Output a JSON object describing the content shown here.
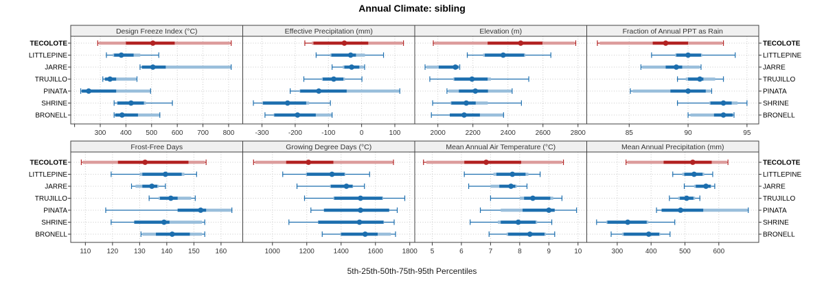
{
  "title": "Annual Climate: sibling",
  "caption": "5th-25th-50th-75th-95th Percentiles",
  "sites": [
    "TECOLOTE",
    "LITTLEPINE",
    "JARRE",
    "TRUJILLO",
    "PINATA",
    "SHRINE",
    "BRONELL"
  ],
  "highlight_site": "TECOLOTE",
  "colors": {
    "highlight": "#B22222",
    "normal": "#1C6EAE",
    "grid": "#C8C8C8",
    "border": "#3F3F3F",
    "strip_bg": "#F0F0F0",
    "strip_text": "#333333",
    "tick_text": "#333333",
    "label_text": "#000000"
  },
  "chart_data": [
    {
      "type": "percentile-dotplot",
      "title": "Design Freeze Index (°C)",
      "row": 0,
      "col": 0,
      "xlim": [
        185,
        855
      ],
      "ticks": [
        300,
        400,
        500,
        600,
        700,
        800
      ],
      "unlabeled_ticks": [
        200
      ],
      "series": [
        {
          "site": "TECOLOTE",
          "p5_25_50_75_95": [
            290,
            400,
            505,
            590,
            810
          ],
          "band": [
            295,
            805
          ]
        },
        {
          "site": "LITTLEPINE",
          "p5_25_50_75_95": [
            324,
            354,
            382,
            430,
            528
          ],
          "band": [
            349,
            456
          ]
        },
        {
          "site": "JARRE",
          "p5_25_50_75_95": [
            455,
            462,
            505,
            555,
            810
          ],
          "band": [
            462,
            808
          ]
        },
        {
          "site": "TRUJILLO",
          "p5_25_50_75_95": [
            310,
            318,
            338,
            362,
            443
          ],
          "band": [
            320,
            440
          ]
        },
        {
          "site": "PINATA",
          "p5_25_50_75_95": [
            224,
            228,
            255,
            362,
            496
          ],
          "band": [
            230,
            494
          ]
        },
        {
          "site": "SHRINE",
          "p5_25_50_75_95": [
            354,
            367,
            420,
            470,
            581
          ],
          "band": [
            365,
            478
          ]
        },
        {
          "site": "BRONELL",
          "p5_25_50_75_95": [
            354,
            358,
            385,
            447,
            532
          ],
          "band": [
            360,
            530
          ]
        }
      ]
    },
    {
      "type": "percentile-dotplot",
      "title": "Effective Precipitation (mm)",
      "row": 0,
      "col": 1,
      "xlim": [
        -358,
        160
      ],
      "ticks": [
        -300,
        -200,
        -100,
        0,
        100
      ],
      "unlabeled_ticks": [],
      "series": [
        {
          "site": "TECOLOTE",
          "p5_25_50_75_95": [
            -171,
            -145,
            -52,
            20,
            126
          ],
          "band": [
            -150,
            123
          ]
        },
        {
          "site": "LITTLEPINE",
          "p5_25_50_75_95": [
            -137,
            -91,
            -33,
            -17,
            66
          ],
          "band": [
            -95,
            10
          ]
        },
        {
          "site": "JARRE",
          "p5_25_50_75_95": [
            -89,
            -52,
            -30,
            -7,
            9
          ],
          "band": [
            -57,
            6
          ]
        },
        {
          "site": "TRUJILLO",
          "p5_25_50_75_95": [
            -174,
            -117,
            -84,
            -55,
            1
          ],
          "band": [
            -120,
            -50
          ]
        },
        {
          "site": "PINATA",
          "p5_25_50_75_95": [
            -215,
            -185,
            -129,
            -45,
            115
          ],
          "band": [
            -187,
            113
          ]
        },
        {
          "site": "SHRINE",
          "p5_25_50_75_95": [
            -326,
            -297,
            -223,
            -167,
            -94
          ],
          "band": [
            -299,
            -158
          ]
        },
        {
          "site": "BRONELL",
          "p5_25_50_75_95": [
            -291,
            -263,
            -193,
            -138,
            -89
          ],
          "band": [
            -265,
            -90
          ]
        }
      ]
    },
    {
      "type": "percentile-dotplot",
      "title": "Elevation (m)",
      "row": 0,
      "col": 2,
      "xlim": [
        1868,
        2850
      ],
      "ticks": [
        2000,
        2200,
        2400,
        2600,
        2800
      ],
      "unlabeled_ticks": [],
      "series": [
        {
          "site": "TECOLOTE",
          "p5_25_50_75_95": [
            1974,
            2284,
            2473,
            2597,
            2787
          ],
          "band": [
            1980,
            2780
          ]
        },
        {
          "site": "LITTLEPINE",
          "p5_25_50_75_95": [
            2168,
            2268,
            2373,
            2493,
            2645
          ],
          "band": [
            2258,
            2500
          ]
        },
        {
          "site": "JARRE",
          "p5_25_50_75_95": [
            1927,
            2005,
            2100,
            2118,
            2125
          ],
          "band": [
            1935,
            2120
          ]
        },
        {
          "site": "TRUJILLO",
          "p5_25_50_75_95": [
            1954,
            2094,
            2195,
            2284,
            2519
          ],
          "band": [
            2088,
            2303
          ]
        },
        {
          "site": "PINATA",
          "p5_25_50_75_95": [
            2052,
            2120,
            2214,
            2286,
            2424
          ],
          "band": [
            2060,
            2420
          ]
        },
        {
          "site": "SHRINE",
          "p5_25_50_75_95": [
            1970,
            2077,
            2162,
            2216,
            2477
          ],
          "band": [
            2072,
            2285
          ]
        },
        {
          "site": "BRONELL",
          "p5_25_50_75_95": [
            1963,
            2068,
            2150,
            2240,
            2375
          ],
          "band": [
            2070,
            2373
          ]
        }
      ]
    },
    {
      "type": "percentile-dotplot",
      "title": "Fraction of Annual PPT as Rain",
      "row": 0,
      "col": 3,
      "xlim": [
        81.4,
        96
      ],
      "ticks": [
        85,
        90,
        95
      ],
      "unlabeled_ticks": [],
      "series": [
        {
          "site": "TECOLOTE",
          "p5_25_50_75_95": [
            82.3,
            87.0,
            88.1,
            90.0,
            93.0
          ],
          "band": [
            82.5,
            92.9
          ]
        },
        {
          "site": "LITTLEPINE",
          "p5_25_50_75_95": [
            86.9,
            89.0,
            90.0,
            91.1,
            94.0
          ],
          "band": [
            88.9,
            91.2
          ]
        },
        {
          "site": "JARRE",
          "p5_25_50_75_95": [
            86.0,
            88.1,
            89.0,
            89.5,
            91.1
          ],
          "band": [
            86.1,
            91.0
          ]
        },
        {
          "site": "TRUJILLO",
          "p5_25_50_75_95": [
            89.1,
            90.0,
            91.0,
            91.3,
            93.0
          ],
          "band": [
            89.8,
            92.3
          ]
        },
        {
          "site": "PINATA",
          "p5_25_50_75_95": [
            85.1,
            88.5,
            90.0,
            91.5,
            92.0
          ],
          "band": [
            85.3,
            91.9
          ]
        },
        {
          "site": "SHRINE",
          "p5_25_50_75_95": [
            89.1,
            91.9,
            93.0,
            93.7,
            95.0
          ],
          "band": [
            91.8,
            94.2
          ]
        },
        {
          "site": "BRONELL",
          "p5_25_50_75_95": [
            90.0,
            92.2,
            93.0,
            93.8,
            93.9
          ],
          "band": [
            90.2,
            93.8
          ]
        }
      ]
    },
    {
      "type": "percentile-dotplot",
      "title": "Frost-Free Days",
      "row": 1,
      "col": 0,
      "xlim": [
        104.6,
        168
      ],
      "ticks": [
        110,
        120,
        130,
        140,
        150,
        160
      ],
      "unlabeled_ticks": [],
      "series": [
        {
          "site": "TECOLOTE",
          "p5_25_50_75_95": [
            108.5,
            122,
            132,
            148,
            154.5
          ],
          "band": [
            109,
            154
          ]
        },
        {
          "site": "LITTLEPINE",
          "p5_25_50_75_95": [
            119.5,
            131,
            139.5,
            145.5,
            151
          ],
          "band": [
            130,
            146.5
          ]
        },
        {
          "site": "JARRE",
          "p5_25_50_75_95": [
            127,
            131,
            134.5,
            136.5,
            139.5
          ],
          "band": [
            128.5,
            137
          ]
        },
        {
          "site": "TRUJILLO",
          "p5_25_50_75_95": [
            133.5,
            137.5,
            141.5,
            144,
            150.5
          ],
          "band": [
            137,
            149
          ]
        },
        {
          "site": "PINATA",
          "p5_25_50_75_95": [
            117.5,
            144,
            152.5,
            154.5,
            164
          ],
          "band": [
            144,
            163.8
          ]
        },
        {
          "site": "SHRINE",
          "p5_25_50_75_95": [
            119.5,
            128,
            139,
            141,
            154
          ],
          "band": [
            128,
            153
          ]
        },
        {
          "site": "BRONELL",
          "p5_25_50_75_95": [
            130.5,
            136,
            142,
            148.5,
            154
          ],
          "band": [
            131,
            153
          ]
        }
      ]
    },
    {
      "type": "percentile-dotplot",
      "title": "Growing Degree Days (°C)",
      "row": 1,
      "col": 1,
      "xlim": [
        827,
        1829
      ],
      "ticks": [
        1000,
        1200,
        1400,
        1600,
        1800
      ],
      "unlabeled_ticks": [],
      "series": [
        {
          "site": "TECOLOTE",
          "p5_25_50_75_95": [
            890,
            1080,
            1210,
            1355,
            1705
          ],
          "band": [
            900,
            1700
          ]
        },
        {
          "site": "LITTLEPINE",
          "p5_25_50_75_95": [
            1060,
            1200,
            1347,
            1420,
            1566
          ],
          "band": [
            1195,
            1425
          ]
        },
        {
          "site": "JARRE",
          "p5_25_50_75_95": [
            1143,
            1340,
            1431,
            1467,
            1536
          ],
          "band": [
            1335,
            1470
          ]
        },
        {
          "site": "TRUJILLO",
          "p5_25_50_75_95": [
            1187,
            1360,
            1513,
            1640,
            1771
          ],
          "band": [
            1355,
            1645
          ]
        },
        {
          "site": "PINATA",
          "p5_25_50_75_95": [
            1224,
            1300,
            1513,
            1680,
            1727
          ],
          "band": [
            1300,
            1680
          ]
        },
        {
          "site": "SHRINE",
          "p5_25_50_75_95": [
            1096,
            1267,
            1507,
            1647,
            1709
          ],
          "band": [
            1265,
            1650
          ]
        },
        {
          "site": "BRONELL",
          "p5_25_50_75_95": [
            1290,
            1400,
            1540,
            1613,
            1717
          ],
          "band": [
            1395,
            1690
          ]
        }
      ]
    },
    {
      "type": "percentile-dotplot",
      "title": "Mean Annual Air Temperature (°C)",
      "row": 1,
      "col": 2,
      "xlim": [
        4.4,
        10.3
      ],
      "ticks": [
        5,
        6,
        7,
        8,
        9,
        10
      ],
      "unlabeled_ticks": [],
      "series": [
        {
          "site": "TECOLOTE",
          "p5_25_50_75_95": [
            4.7,
            6.1,
            6.85,
            8.05,
            9.5
          ],
          "band": [
            4.8,
            9.45
          ]
        },
        {
          "site": "LITTLEPINE",
          "p5_25_50_75_95": [
            6.1,
            7.2,
            7.75,
            8.2,
            8.7
          ],
          "band": [
            7.1,
            8.3
          ]
        },
        {
          "site": "JARRE",
          "p5_25_50_75_95": [
            6.25,
            7.3,
            7.7,
            7.85,
            8.25
          ],
          "band": [
            7.0,
            7.9
          ]
        },
        {
          "site": "TRUJILLO",
          "p5_25_50_75_95": [
            7.0,
            8.15,
            8.45,
            9.05,
            9.45
          ],
          "band": [
            8.0,
            9.15
          ]
        },
        {
          "site": "PINATA",
          "p5_25_50_75_95": [
            6.65,
            8.1,
            9.0,
            9.2,
            9.95
          ],
          "band": [
            7.35,
            9.2
          ]
        },
        {
          "site": "SHRINE",
          "p5_25_50_75_95": [
            6.3,
            7.35,
            7.95,
            8.55,
            9.1
          ],
          "band": [
            7.25,
            8.6
          ]
        },
        {
          "site": "BRONELL",
          "p5_25_50_75_95": [
            6.95,
            7.6,
            8.35,
            8.85,
            9.2
          ],
          "band": [
            7.55,
            8.9
          ]
        }
      ]
    },
    {
      "type": "percentile-dotplot",
      "title": "Mean Annual Precipitation (mm)",
      "row": 1,
      "col": 3,
      "xlim": [
        210,
        718
      ],
      "ticks": [
        300,
        400,
        500,
        600
      ],
      "unlabeled_ticks": [],
      "series": [
        {
          "site": "TECOLOTE",
          "p5_25_50_75_95": [
            326,
            437,
            523,
            579,
            627
          ],
          "band": [
            330,
            624
          ]
        },
        {
          "site": "LITTLEPINE",
          "p5_25_50_75_95": [
            464,
            498,
            527,
            552,
            582
          ],
          "band": [
            492,
            557
          ]
        },
        {
          "site": "JARRE",
          "p5_25_50_75_95": [
            498,
            532,
            562,
            576,
            588
          ],
          "band": [
            527,
            578
          ]
        },
        {
          "site": "TRUJILLO",
          "p5_25_50_75_95": [
            454,
            485,
            505,
            525,
            544
          ],
          "band": [
            480,
            530
          ]
        },
        {
          "site": "PINATA",
          "p5_25_50_75_95": [
            416,
            431,
            487,
            554,
            687
          ],
          "band": [
            433,
            685
          ]
        },
        {
          "site": "SHRINE",
          "p5_25_50_75_95": [
            239,
            271,
            331,
            387,
            470
          ],
          "band": [
            268,
            392
          ]
        },
        {
          "site": "BRONELL",
          "p5_25_50_75_95": [
            282,
            319,
            393,
            424,
            456
          ],
          "band": [
            314,
            427
          ]
        }
      ]
    }
  ]
}
